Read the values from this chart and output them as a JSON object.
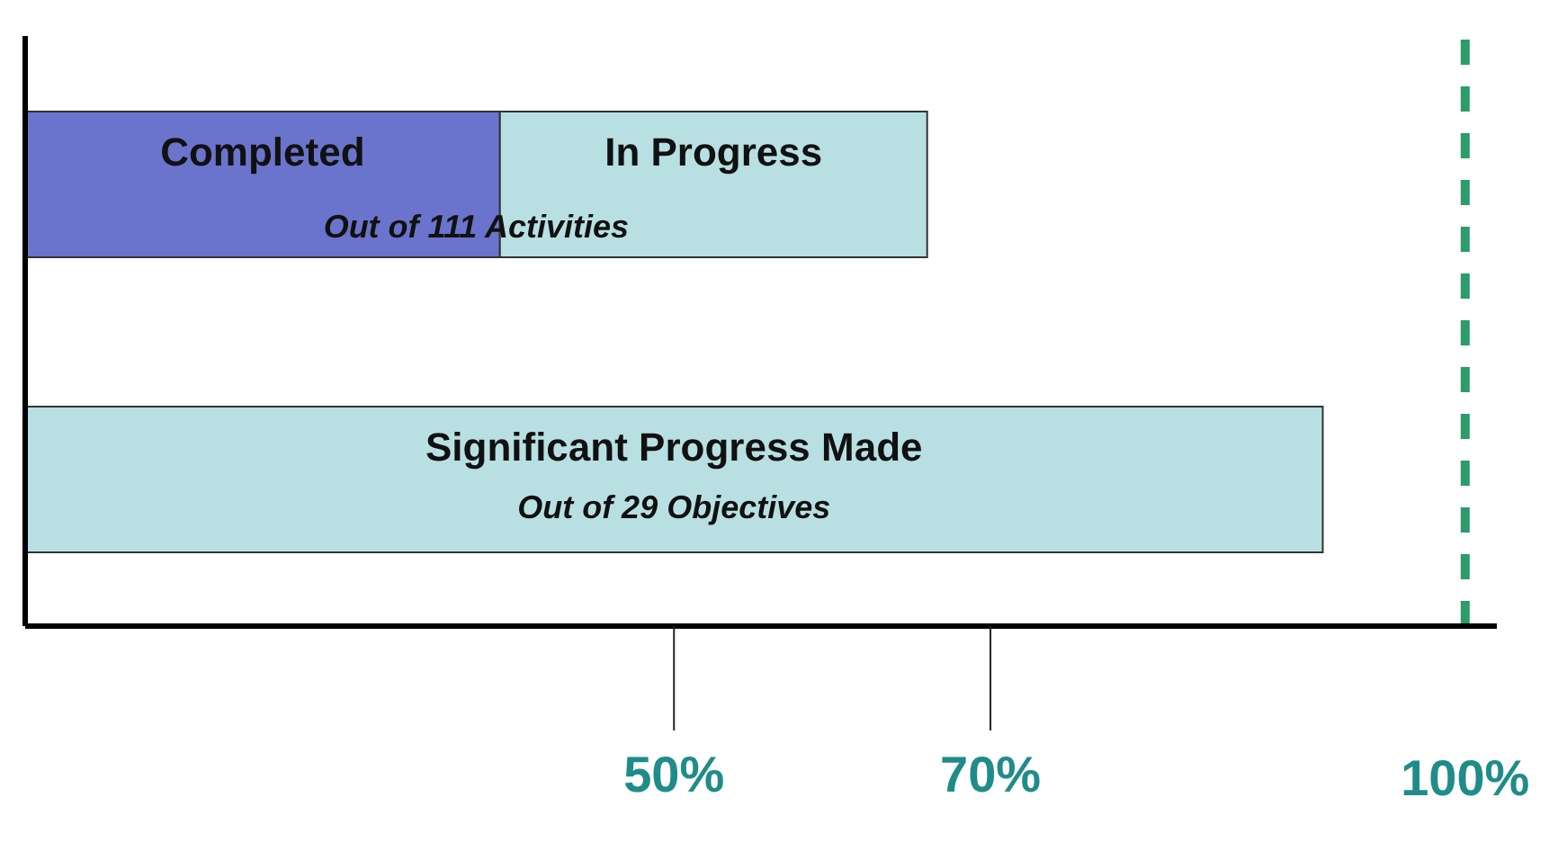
{
  "chart_data": {
    "type": "bar",
    "orientation": "horizontal",
    "stacked": true,
    "relative": false,
    "categories": [
      null,
      null
    ],
    "series": [
      {
        "name": "Completed",
        "color": "#6b74cc",
        "values": [
          39,
          null
        ]
      },
      {
        "name": "In Progress",
        "color": "#b8e0e3",
        "values": [
          27,
          null
        ]
      },
      {
        "name": "Significant Progress Made",
        "color": "#b8e0e3",
        "values": [
          null,
          91
        ]
      }
    ],
    "xlim": [
      9,
      102
    ],
    "xticks": [
      {
        "value": 50,
        "label": "50%"
      },
      {
        "value": 70,
        "label": "70%"
      }
    ],
    "ref_lines": [
      {
        "axis": "x",
        "value": 100,
        "label": "100%",
        "color": "#2e9b6a",
        "line_style": "dashed"
      }
    ],
    "annotations": [
      "Out of 111 Activities",
      "Out of 29 Objectives"
    ]
  }
}
